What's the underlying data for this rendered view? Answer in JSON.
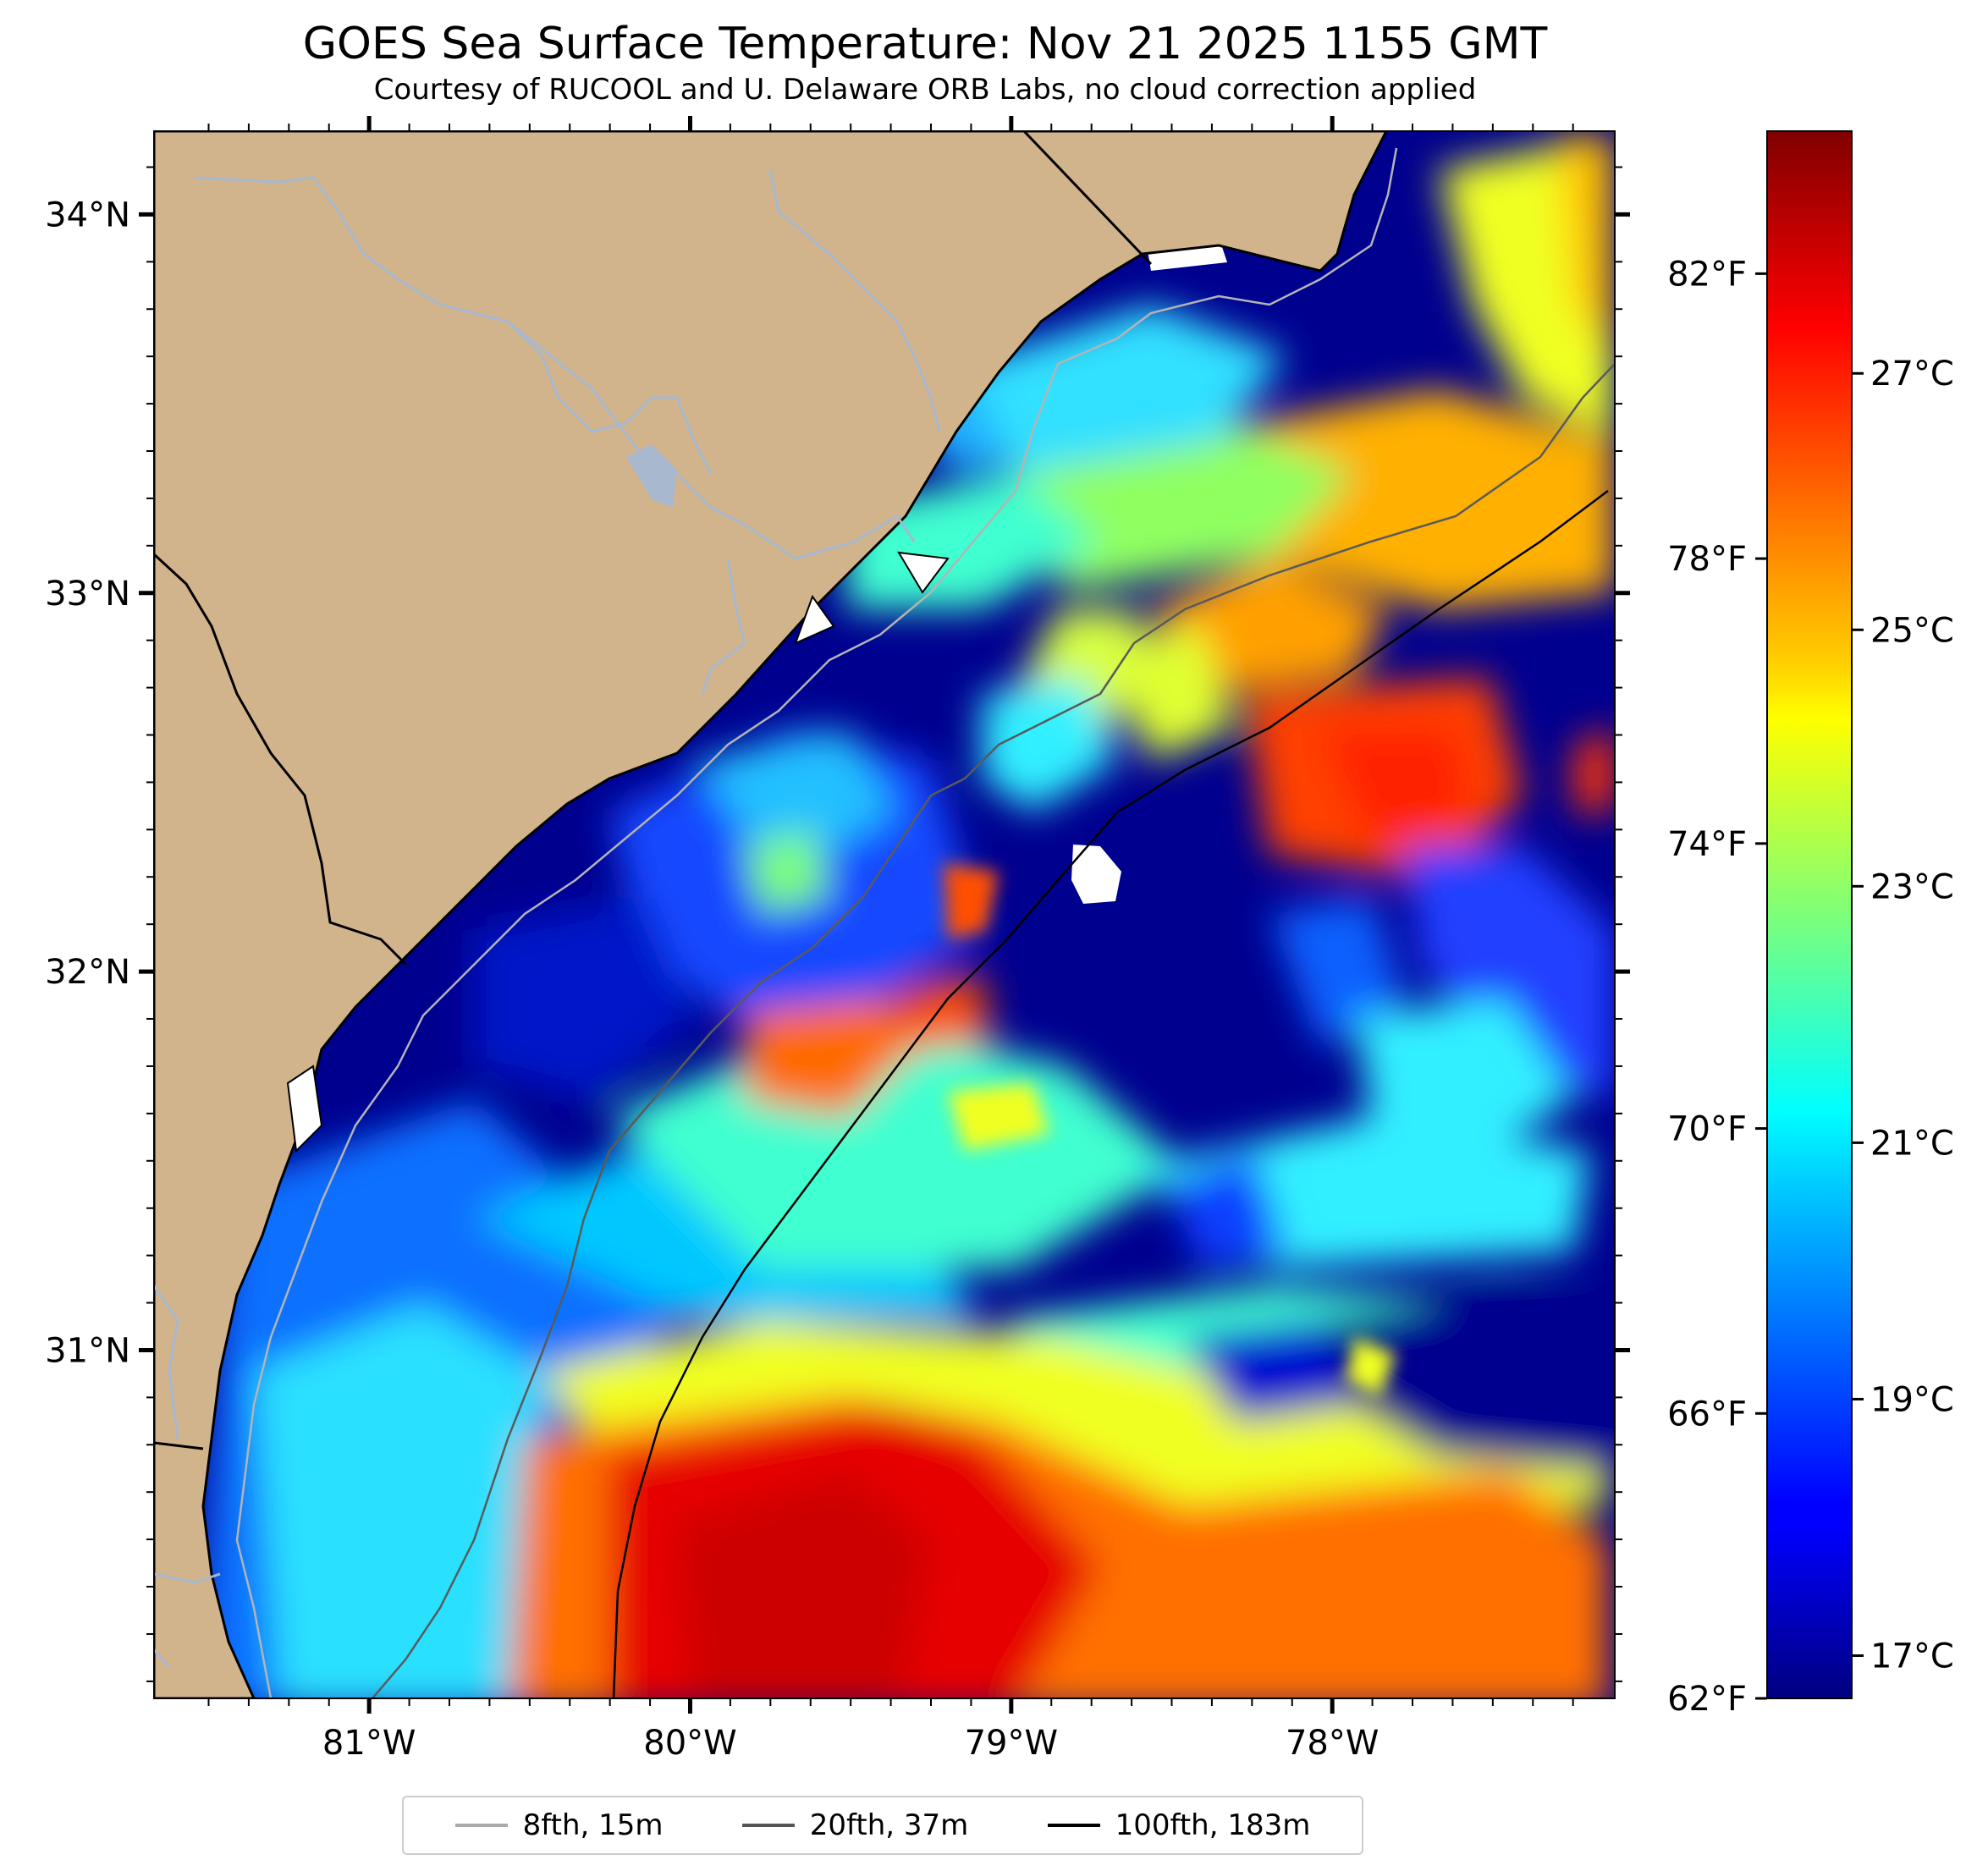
{
  "title": "GOES Sea Surface Temperature: Nov 21 2025 1155 GMT",
  "subtitle": "Courtesy of RUCOOL and U. Delaware ORB Labs, no cloud correction applied",
  "map": {
    "lon_ticks": [
      {
        "value": -81,
        "label": "81°W"
      },
      {
        "value": -80,
        "label": "80°W"
      },
      {
        "value": -79,
        "label": "79°W"
      },
      {
        "value": -78,
        "label": "78°W"
      }
    ],
    "lat_ticks": [
      {
        "value": 34,
        "label": "34°N"
      },
      {
        "value": 33,
        "label": "33°N"
      },
      {
        "value": 32,
        "label": "32°N"
      },
      {
        "value": 31,
        "label": "31°N"
      }
    ],
    "extent": {
      "lon_min": -81.67,
      "lon_max": -77.12,
      "lat_min": 30.08,
      "lat_max": 34.22
    },
    "land_color": "#d2b48c",
    "river_color": "#a7b8cf"
  },
  "colorbar": {
    "colormap": "jet",
    "range_f": [
      62,
      84
    ],
    "fahrenheit_ticks": [
      {
        "value": 62,
        "label": "62°F"
      },
      {
        "value": 66,
        "label": "66°F"
      },
      {
        "value": 70,
        "label": "70°F"
      },
      {
        "value": 74,
        "label": "74°F"
      },
      {
        "value": 78,
        "label": "78°F"
      },
      {
        "value": 82,
        "label": "82°F"
      }
    ],
    "celsius_ticks": [
      {
        "value": 17,
        "label": "17°C"
      },
      {
        "value": 19,
        "label": "19°C"
      },
      {
        "value": 21,
        "label": "21°C"
      },
      {
        "value": 23,
        "label": "23°C"
      },
      {
        "value": 25,
        "label": "25°C"
      },
      {
        "value": 27,
        "label": "27°C"
      }
    ]
  },
  "legend": [
    {
      "label": "8fth, 15m",
      "color": "#aaaaaa"
    },
    {
      "label": "20fth, 37m",
      "color": "#555555"
    },
    {
      "label": "100fth, 183m",
      "color": "#000000"
    }
  ]
}
